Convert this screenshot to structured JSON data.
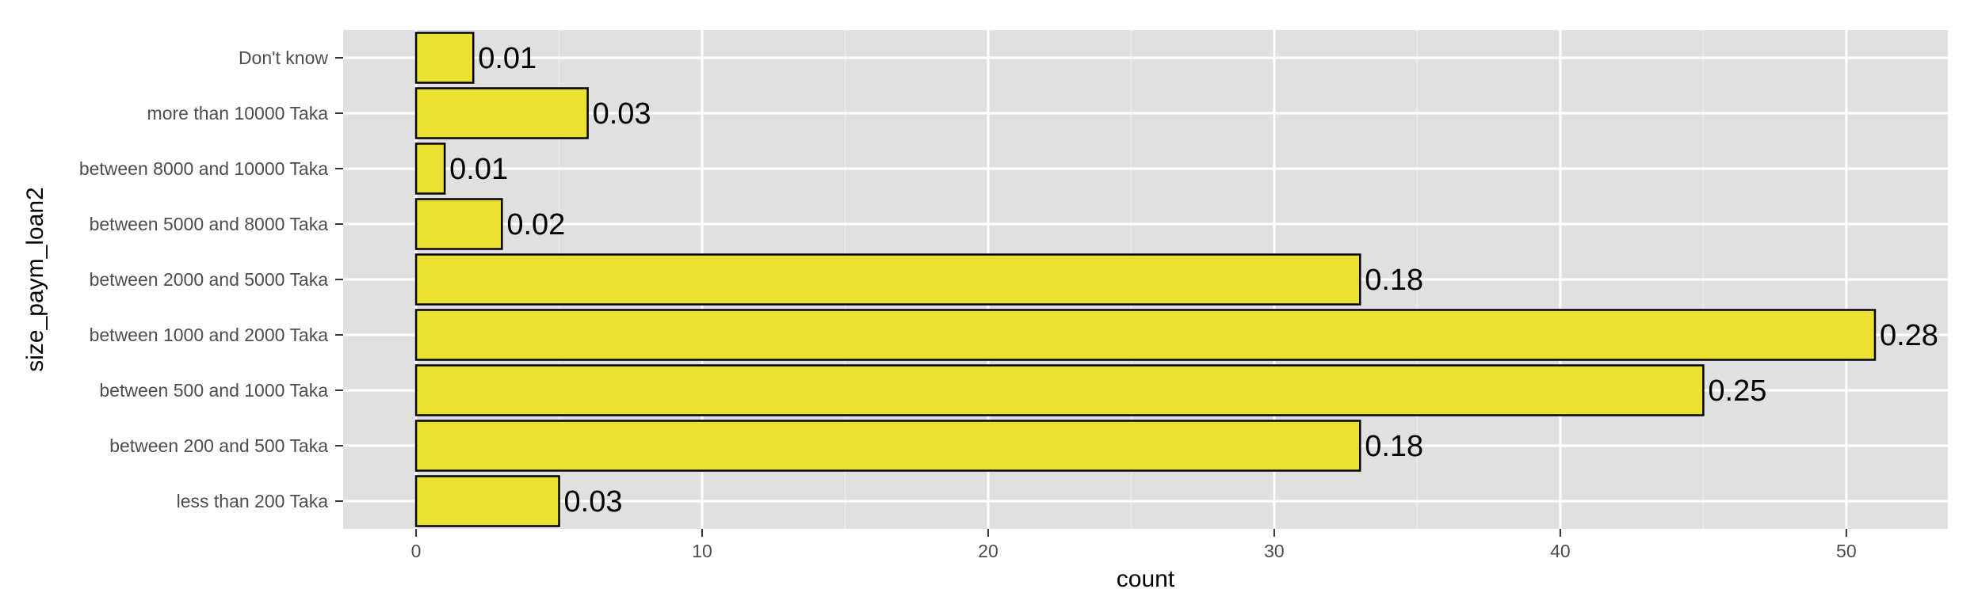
{
  "chart_data": {
    "type": "bar",
    "orientation": "horizontal",
    "title": "",
    "xlabel": "count",
    "ylabel": "size_paym_loan2",
    "categories": [
      "less than 200 Taka",
      "between 200 and 500 Taka",
      "between 500 and 1000 Taka",
      "between 1000 and 2000 Taka",
      "between 2000 and 5000 Taka",
      "between 5000 and 8000 Taka",
      "between 8000 and 10000 Taka",
      "more than 10000 Taka",
      "Don't know"
    ],
    "values": [
      5,
      33,
      45,
      51,
      33,
      3,
      1,
      6,
      2
    ],
    "data_labels": [
      "0.03",
      "0.18",
      "0.25",
      "0.28",
      "0.18",
      "0.02",
      "0.01",
      "0.03",
      "0.01"
    ],
    "xlim": [
      -2.55,
      53.55
    ],
    "x_ticks": [
      0,
      10,
      20,
      30,
      40,
      50
    ],
    "x_tick_labels": [
      "0",
      "10",
      "20",
      "30",
      "40",
      "50"
    ],
    "grid": true,
    "legend": "none",
    "colors": {
      "bar_fill": "#ebe133",
      "bar_outline": "#000000",
      "panel_background": "#e0e0e0",
      "grid_major": "#ffffff",
      "grid_minor": "#ececec",
      "tick_text": "#4d4d4d"
    }
  }
}
